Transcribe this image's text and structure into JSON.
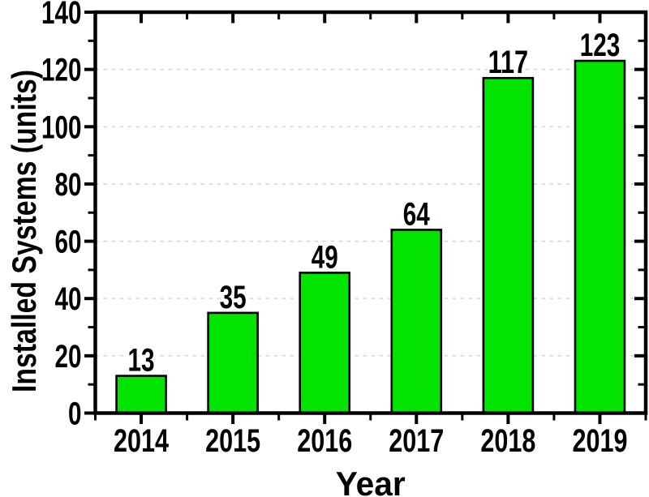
{
  "figure": {
    "background": "#FFFFFF",
    "description": "Bar chart of installed systems per year"
  },
  "chart_data": {
    "type": "bar",
    "title": "",
    "categories": [
      "2014",
      "2015",
      "2016",
      "2017",
      "2018",
      "2019"
    ],
    "values": [
      13,
      35,
      49,
      64,
      117,
      123
    ],
    "bar_value_labels": [
      "13",
      "35",
      "49",
      "64",
      "117",
      "123"
    ],
    "xlabel": "Year",
    "ylabel": "Installed Systems (units)",
    "ylim": [
      0,
      140
    ],
    "y_major_tick_step": 20,
    "y_minor_tick_step": 10,
    "y_tick_labels": [
      "0",
      "20",
      "40",
      "60",
      "80",
      "100",
      "120",
      "140"
    ],
    "grid": {
      "horizontal": true,
      "vertical": false,
      "style": "dashed",
      "at_major_ticks": true
    },
    "ticks": {
      "left": "out",
      "bottom": "out",
      "top": "in",
      "right": "in",
      "minor_between_categories": true
    },
    "legend_position": "none",
    "colors": {
      "bar_fill": "#00E400",
      "bar_stroke": "#000000",
      "grid": "#D8D8D8",
      "axis": "#000000",
      "text": "#000000",
      "label_halo": "#FFFFFF",
      "background": "#FFFFFF"
    }
  }
}
